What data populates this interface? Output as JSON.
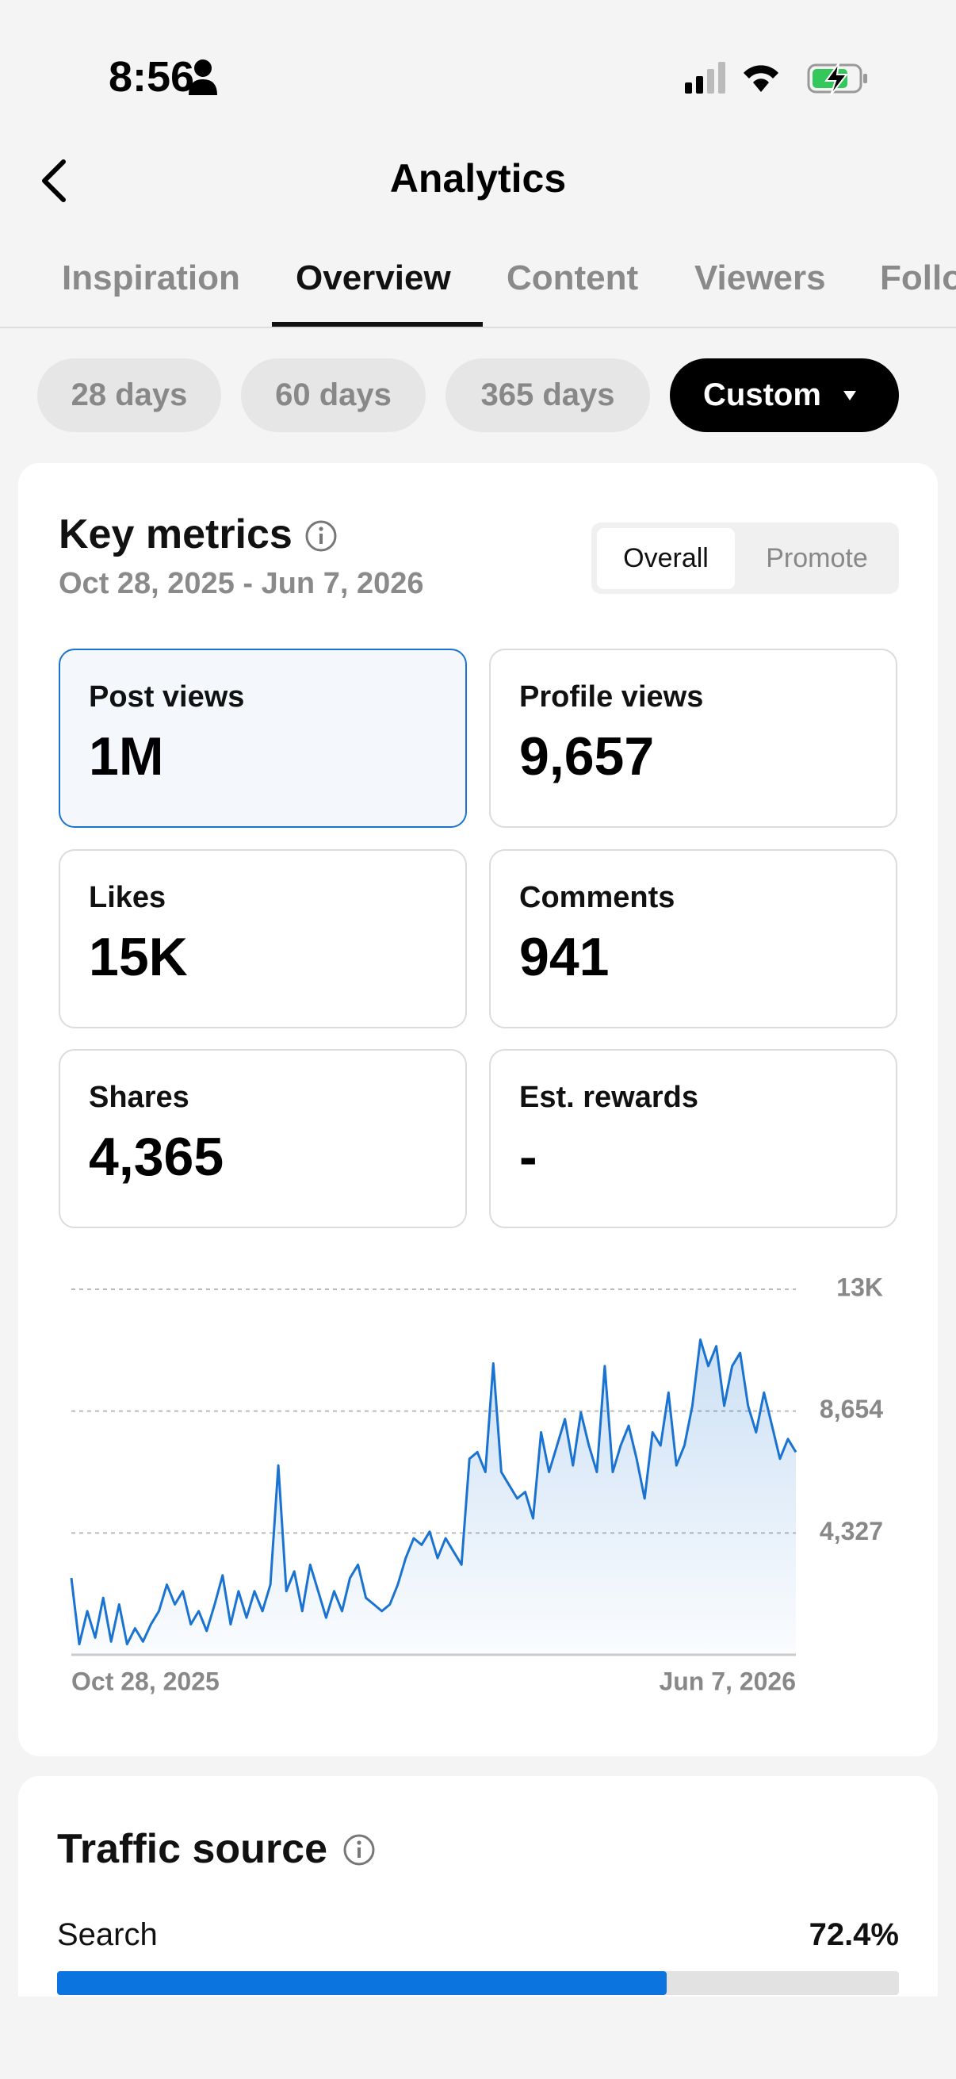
{
  "status_bar": {
    "time": "8:56"
  },
  "header": {
    "title": "Analytics"
  },
  "tabs": {
    "items": [
      "Inspiration",
      "Overview",
      "Content",
      "Viewers",
      "Followers"
    ],
    "active": 1
  },
  "periods": {
    "items": [
      "28 days",
      "60 days",
      "365 days",
      "Custom"
    ],
    "active": 3
  },
  "key_metrics": {
    "title": "Key metrics",
    "date_range": "Oct 28, 2025 - Jun 7, 2026",
    "toggle": [
      "Overall",
      "Promote"
    ],
    "toggle_active": 0,
    "metrics": [
      {
        "label": "Post views",
        "value": "1M"
      },
      {
        "label": "Profile views",
        "value": "9,657"
      },
      {
        "label": "Likes",
        "value": "15K"
      },
      {
        "label": "Comments",
        "value": "941"
      },
      {
        "label": "Shares",
        "value": "4,365"
      },
      {
        "label": "Est. rewards",
        "value": "-"
      }
    ],
    "selected_metric": 0
  },
  "chart_data": {
    "type": "line",
    "categories": [
      "Oct 28, 2025",
      null,
      null,
      null,
      null,
      null,
      null,
      null,
      null,
      null,
      null,
      null,
      null,
      null,
      null,
      null,
      null,
      null,
      null,
      null,
      null,
      null,
      null,
      null,
      null,
      null,
      null,
      null,
      null,
      null,
      null,
      null,
      null,
      null,
      null,
      null,
      null,
      null,
      null,
      null,
      null,
      null,
      null,
      null,
      null,
      null,
      null,
      null,
      null,
      null,
      null,
      null,
      null,
      null,
      null,
      null,
      null,
      null,
      null,
      null,
      null,
      null,
      null,
      null,
      null,
      null,
      null,
      null,
      null,
      null,
      null,
      null,
      null,
      null,
      null,
      null,
      null,
      null,
      null,
      null,
      null,
      null,
      null,
      null,
      null,
      null,
      null,
      null,
      null,
      null,
      null,
      "Jun 7, 2026"
    ],
    "series": [
      {
        "name": "Post views",
        "color": "#1a73d0",
        "values": [
          2728,
          376,
          1552,
          611,
          2022,
          470,
          1787,
          376,
          941,
          470,
          1082,
          1552,
          2493,
          1787,
          2257,
          1082,
          1552,
          847,
          1787,
          2822,
          1082,
          2257,
          1317,
          2257,
          1552,
          2493,
          6725,
          2257,
          2963,
          1552,
          3198,
          2257,
          1317,
          2257,
          1552,
          2728,
          3198,
          2022,
          1787,
          1552,
          1787,
          2493,
          3433,
          4139,
          3903,
          4374,
          3433,
          4139,
          3668,
          3198,
          6960,
          7196,
          6490,
          10347,
          6490,
          6020,
          5550,
          5785,
          4844,
          7901,
          6490,
          7431,
          8371,
          6725,
          8606,
          7431,
          6490,
          10253,
          6490,
          7431,
          8136,
          6960,
          5550,
          7901,
          7431,
          9312,
          6725,
          7431,
          8842,
          11193,
          10253,
          10958,
          8842,
          10253,
          10723,
          8842,
          7901,
          9312,
          8136,
          6960,
          7666,
          7196
        ]
      }
    ],
    "ylim": [
      0,
      12981
    ],
    "yticks": [
      {
        "value": 4327,
        "label": "4,327"
      },
      {
        "value": 8654,
        "label": "8,654"
      },
      {
        "value": 12981,
        "label": "13K"
      }
    ],
    "grid": true
  },
  "traffic_source": {
    "title": "Traffic source",
    "items": [
      {
        "name": "Search",
        "value": 72.4,
        "value_label": "72.4%"
      }
    ]
  }
}
